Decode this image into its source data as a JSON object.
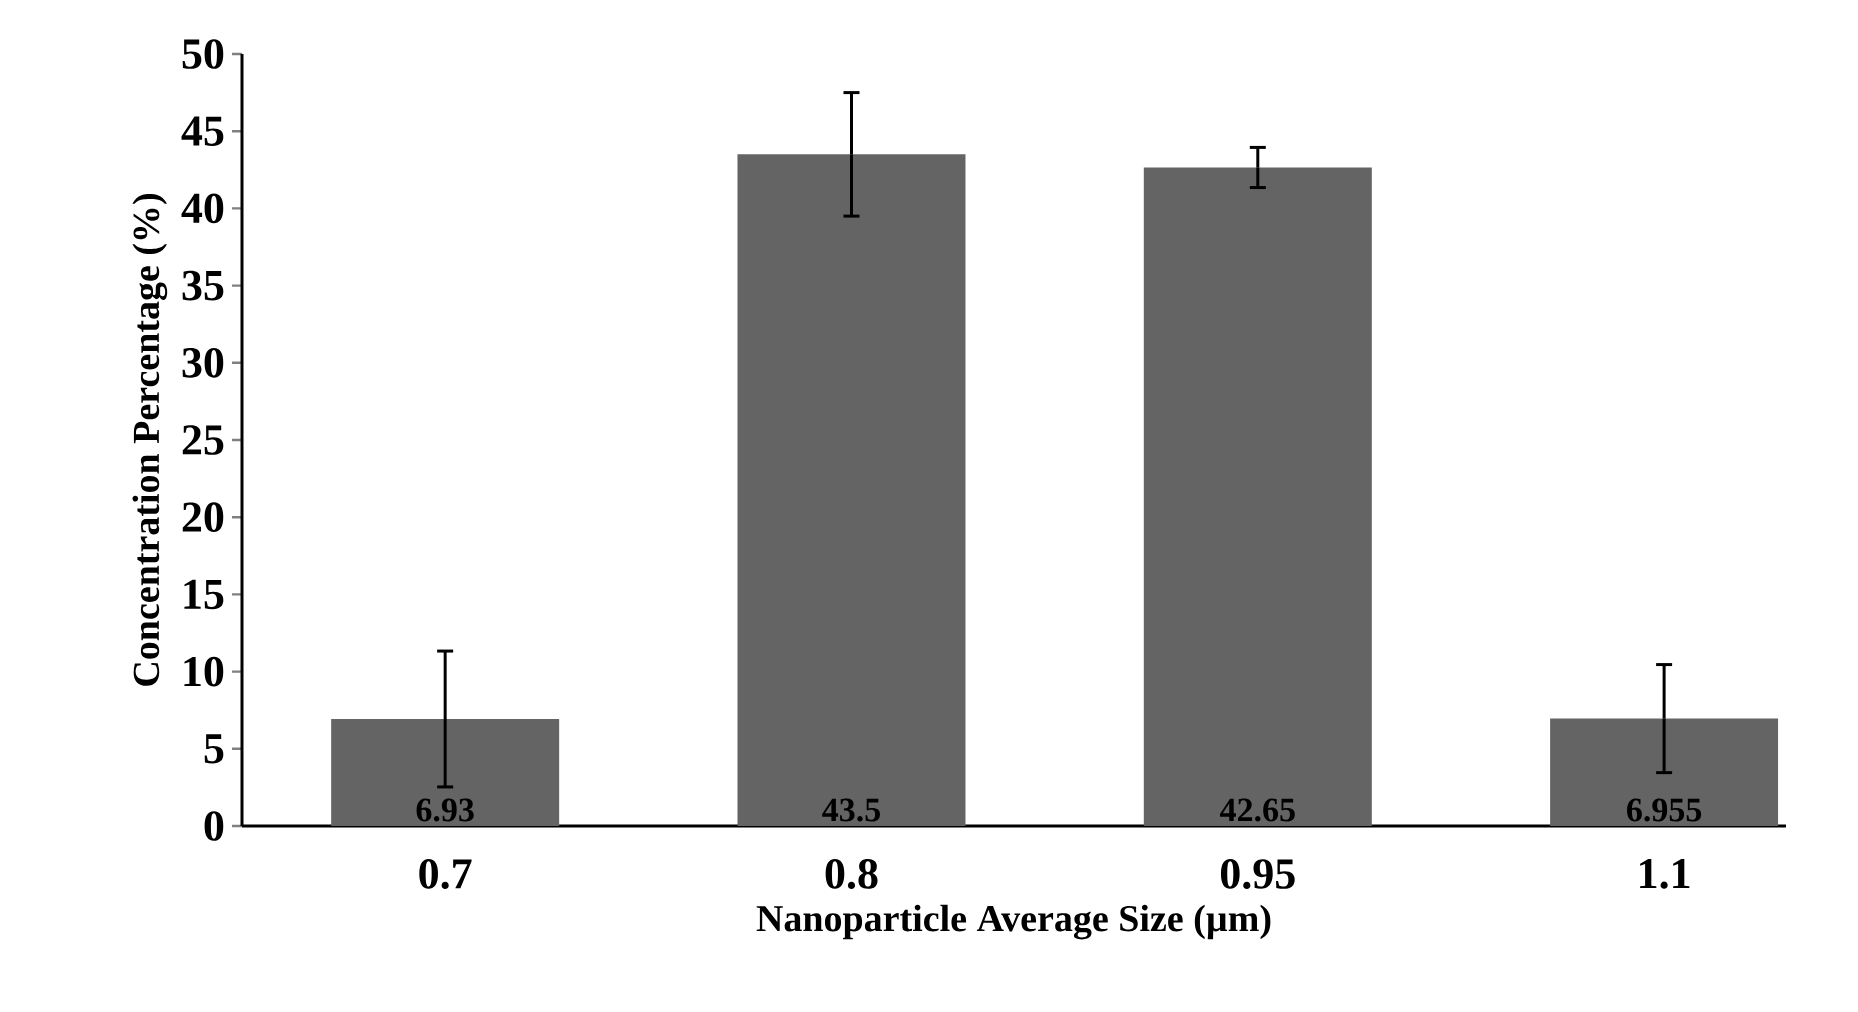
{
  "chart_data": {
    "type": "bar",
    "xlabel": "Nanoparticle Average Size (µm)",
    "ylabel": "Concentration Percentage (%)",
    "categories": [
      "0.7",
      "0.8",
      "0.95",
      "1.1"
    ],
    "values": [
      6.93,
      43.5,
      42.65,
      6.955
    ],
    "errors": [
      4.4,
      4,
      1.3,
      3.5
    ],
    "color": "#646464",
    "data_labels": true,
    "ylim": [
      0,
      50
    ],
    "yticks": [
      0,
      5,
      10,
      15,
      20,
      25,
      30,
      35,
      40,
      45,
      50
    ]
  }
}
